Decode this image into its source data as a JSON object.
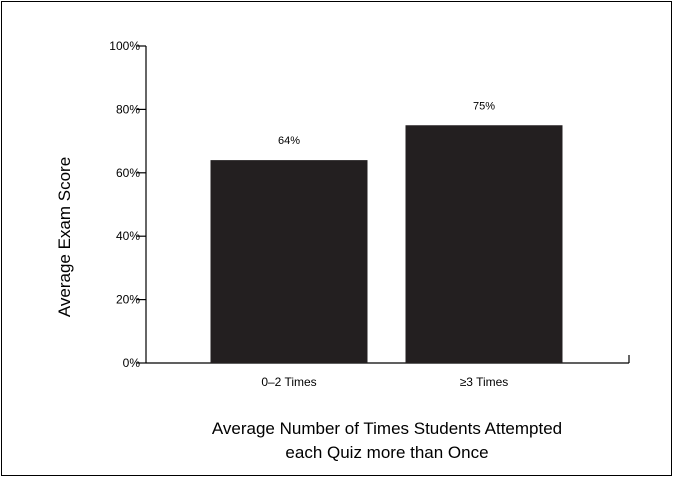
{
  "chart_data": {
    "type": "bar",
    "categories": [
      "0–2 Times",
      "≥3 Times"
    ],
    "values": [
      64,
      75
    ],
    "data_labels": [
      "64%",
      "75%"
    ],
    "ylabel": "Average Exam Score",
    "xlabel_lines": [
      "Average Number of Times Students Attempted",
      "each Quiz more than Once"
    ],
    "ylim": [
      0,
      100
    ],
    "y_ticks": [
      0,
      20,
      40,
      60,
      80,
      100
    ],
    "y_tick_labels": [
      "0%",
      "20%",
      "40%",
      "60%",
      "80%",
      "100%"
    ],
    "grid": false,
    "bar_color": "#231f20"
  }
}
